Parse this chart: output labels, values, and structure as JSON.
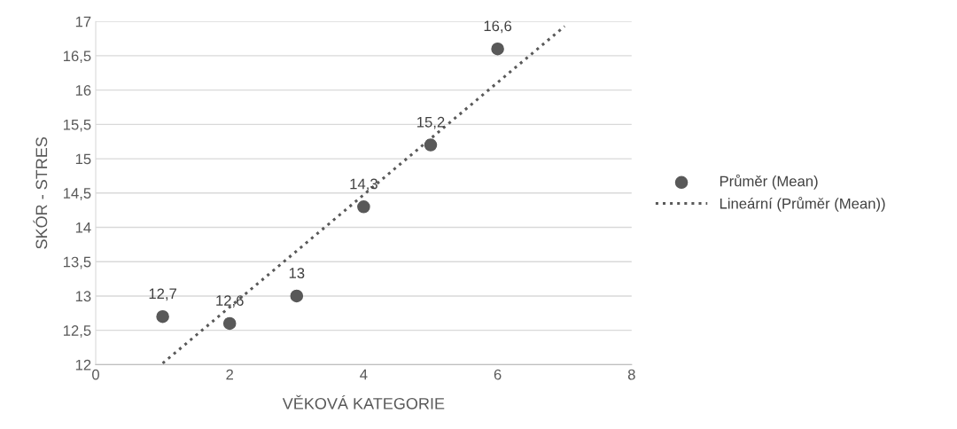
{
  "chart_data": {
    "type": "scatter",
    "xlabel": "VĚKOVÁ KATEGORIE",
    "ylabel": "SKÓR - STRES",
    "xlim": [
      0,
      8
    ],
    "xticks": [
      0,
      2,
      4,
      6,
      8
    ],
    "ylim": [
      12,
      17
    ],
    "yticks": [
      12,
      {
        "value": 12.5,
        "label": "12,5"
      },
      13,
      {
        "value": 13.5,
        "label": "13,5"
      },
      14,
      {
        "value": 14.5,
        "label": "14,5"
      },
      15,
      {
        "value": 15.5,
        "label": "15,5"
      },
      16,
      {
        "value": 16.5,
        "label": "16,5"
      },
      17
    ],
    "grid": "y",
    "legend": "right",
    "series": [
      {
        "name": "Průměr (Mean)",
        "color": "#595959",
        "marker": "circle",
        "x": [
          1,
          2,
          3,
          4,
          5,
          6
        ],
        "values": [
          12.7,
          12.6,
          13,
          14.3,
          15.2,
          16.6
        ],
        "value_labels": [
          "12,7",
          "12,6",
          "13",
          "14,3",
          "15,2",
          "16,6"
        ]
      },
      {
        "name": "Lineární (Průměr (Mean))",
        "type": "line",
        "color": "#595959",
        "line_style": "dotted",
        "x": [
          1,
          7
        ],
        "values": [
          12.02,
          16.93
        ]
      }
    ]
  }
}
